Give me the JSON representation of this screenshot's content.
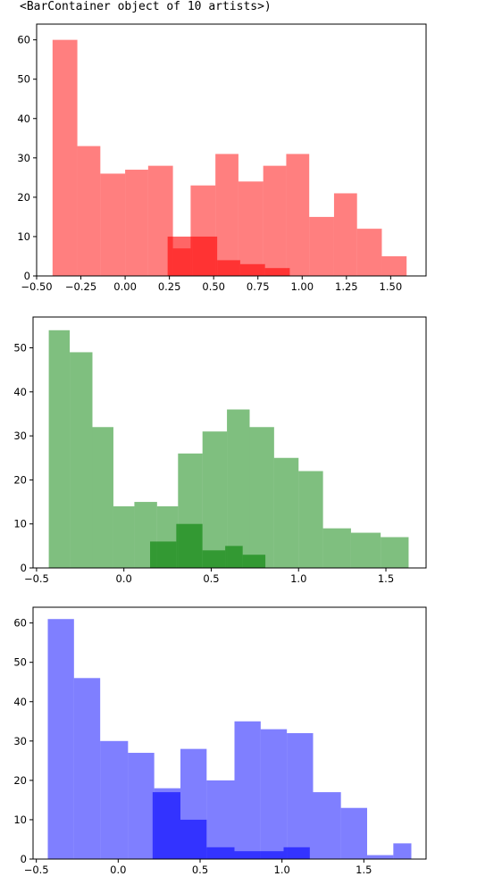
{
  "output_text": "<BarContainer object of 10 artists>)",
  "chart_data": [
    {
      "type": "bar",
      "subtype": "overlaid-histogram",
      "color": "#ff0000",
      "xlim": [
        -0.5,
        1.7
      ],
      "ylim": [
        0,
        64
      ],
      "xticks": [
        -0.5,
        -0.25,
        0.0,
        0.25,
        0.5,
        0.75,
        1.0,
        1.25,
        1.5
      ],
      "xtick_labels": [
        "−0.50",
        "−0.25",
        "0.00",
        "0.25",
        "0.50",
        "0.75",
        "1.00",
        "1.25",
        "1.50"
      ],
      "yticks": [
        0,
        10,
        20,
        30,
        40,
        50,
        60
      ],
      "series": [
        {
          "alpha": 0.5,
          "bins": [
            {
              "x0": -0.41,
              "x1": -0.27,
              "value": 60
            },
            {
              "x0": -0.27,
              "x1": -0.14,
              "value": 33
            },
            {
              "x0": -0.14,
              "x1": 0.0,
              "value": 26
            },
            {
              "x0": 0.0,
              "x1": 0.13,
              "value": 27
            },
            {
              "x0": 0.13,
              "x1": 0.27,
              "value": 28
            },
            {
              "x0": 0.27,
              "x1": 0.37,
              "value": 7
            },
            {
              "x0": 0.37,
              "x1": 0.51,
              "value": 23
            },
            {
              "x0": 0.51,
              "x1": 0.64,
              "value": 31
            },
            {
              "x0": 0.64,
              "x1": 0.78,
              "value": 24
            },
            {
              "x0": 0.78,
              "x1": 0.91,
              "value": 28
            },
            {
              "x0": 0.91,
              "x1": 1.04,
              "value": 31
            },
            {
              "x0": 1.04,
              "x1": 1.18,
              "value": 15
            },
            {
              "x0": 1.18,
              "x1": 1.31,
              "value": 21
            },
            {
              "x0": 1.31,
              "x1": 1.45,
              "value": 12
            },
            {
              "x0": 1.45,
              "x1": 1.59,
              "value": 5
            }
          ]
        },
        {
          "alpha": 0.6,
          "bins": [
            {
              "x0": 0.24,
              "x1": 0.38,
              "value": 10
            },
            {
              "x0": 0.38,
              "x1": 0.52,
              "value": 10
            },
            {
              "x0": 0.52,
              "x1": 0.65,
              "value": 4
            },
            {
              "x0": 0.65,
              "x1": 0.79,
              "value": 3
            },
            {
              "x0": 0.79,
              "x1": 0.93,
              "value": 2
            }
          ]
        }
      ]
    },
    {
      "type": "bar",
      "subtype": "overlaid-histogram",
      "color": "#008000",
      "xlim": [
        -0.52,
        1.73
      ],
      "ylim": [
        0,
        57
      ],
      "xticks": [
        -0.5,
        0.0,
        0.5,
        1.0,
        1.5
      ],
      "xtick_labels": [
        "−0.5",
        "0.0",
        "0.5",
        "1.0",
        "1.5"
      ],
      "yticks": [
        0,
        10,
        20,
        30,
        40,
        50
      ],
      "series": [
        {
          "alpha": 0.5,
          "bins": [
            {
              "x0": -0.43,
              "x1": -0.31,
              "value": 54
            },
            {
              "x0": -0.31,
              "x1": -0.18,
              "value": 49
            },
            {
              "x0": -0.18,
              "x1": -0.06,
              "value": 32
            },
            {
              "x0": -0.06,
              "x1": 0.06,
              "value": 14
            },
            {
              "x0": 0.06,
              "x1": 0.19,
              "value": 15
            },
            {
              "x0": 0.19,
              "x1": 0.31,
              "value": 14
            },
            {
              "x0": 0.31,
              "x1": 0.45,
              "value": 26
            },
            {
              "x0": 0.45,
              "x1": 0.59,
              "value": 31
            },
            {
              "x0": 0.59,
              "x1": 0.72,
              "value": 36
            },
            {
              "x0": 0.72,
              "x1": 0.86,
              "value": 32
            },
            {
              "x0": 0.86,
              "x1": 1.0,
              "value": 25
            },
            {
              "x0": 1.0,
              "x1": 1.14,
              "value": 22
            },
            {
              "x0": 1.14,
              "x1": 1.3,
              "value": 9
            },
            {
              "x0": 1.3,
              "x1": 1.47,
              "value": 8
            },
            {
              "x0": 1.47,
              "x1": 1.63,
              "value": 7
            }
          ]
        },
        {
          "alpha": 0.6,
          "bins": [
            {
              "x0": 0.15,
              "x1": 0.3,
              "value": 6
            },
            {
              "x0": 0.3,
              "x1": 0.45,
              "value": 10
            },
            {
              "x0": 0.45,
              "x1": 0.58,
              "value": 4
            },
            {
              "x0": 0.58,
              "x1": 0.68,
              "value": 5
            },
            {
              "x0": 0.68,
              "x1": 0.81,
              "value": 3
            }
          ]
        }
      ]
    },
    {
      "type": "bar",
      "subtype": "overlaid-histogram",
      "color": "#0000ff",
      "xlim": [
        -0.52,
        1.88
      ],
      "ylim": [
        0,
        64
      ],
      "xticks": [
        -0.5,
        0.0,
        0.5,
        1.0,
        1.5
      ],
      "xtick_labels": [
        "−0.5",
        "0.0",
        "0.5",
        "1.0",
        "1.5"
      ],
      "yticks": [
        0,
        10,
        20,
        30,
        40,
        50,
        60
      ],
      "series": [
        {
          "alpha": 0.5,
          "bins": [
            {
              "x0": -0.43,
              "x1": -0.27,
              "value": 61
            },
            {
              "x0": -0.27,
              "x1": -0.11,
              "value": 46
            },
            {
              "x0": -0.11,
              "x1": 0.06,
              "value": 30
            },
            {
              "x0": 0.06,
              "x1": 0.22,
              "value": 27
            },
            {
              "x0": 0.22,
              "x1": 0.38,
              "value": 18
            },
            {
              "x0": 0.38,
              "x1": 0.54,
              "value": 28
            },
            {
              "x0": 0.54,
              "x1": 0.71,
              "value": 20
            },
            {
              "x0": 0.71,
              "x1": 0.87,
              "value": 35
            },
            {
              "x0": 0.87,
              "x1": 1.03,
              "value": 33
            },
            {
              "x0": 1.03,
              "x1": 1.19,
              "value": 32
            },
            {
              "x0": 1.19,
              "x1": 1.36,
              "value": 17
            },
            {
              "x0": 1.36,
              "x1": 1.52,
              "value": 13
            },
            {
              "x0": 1.52,
              "x1": 1.68,
              "value": 1
            },
            {
              "x0": 1.68,
              "x1": 1.79,
              "value": 4
            }
          ]
        },
        {
          "alpha": 0.6,
          "bins": [
            {
              "x0": 0.21,
              "x1": 0.38,
              "value": 17
            },
            {
              "x0": 0.38,
              "x1": 0.54,
              "value": 10
            },
            {
              "x0": 0.54,
              "x1": 0.71,
              "value": 3
            },
            {
              "x0": 0.71,
              "x1": 1.01,
              "value": 2
            },
            {
              "x0": 1.01,
              "x1": 1.17,
              "value": 3
            }
          ]
        }
      ]
    }
  ]
}
